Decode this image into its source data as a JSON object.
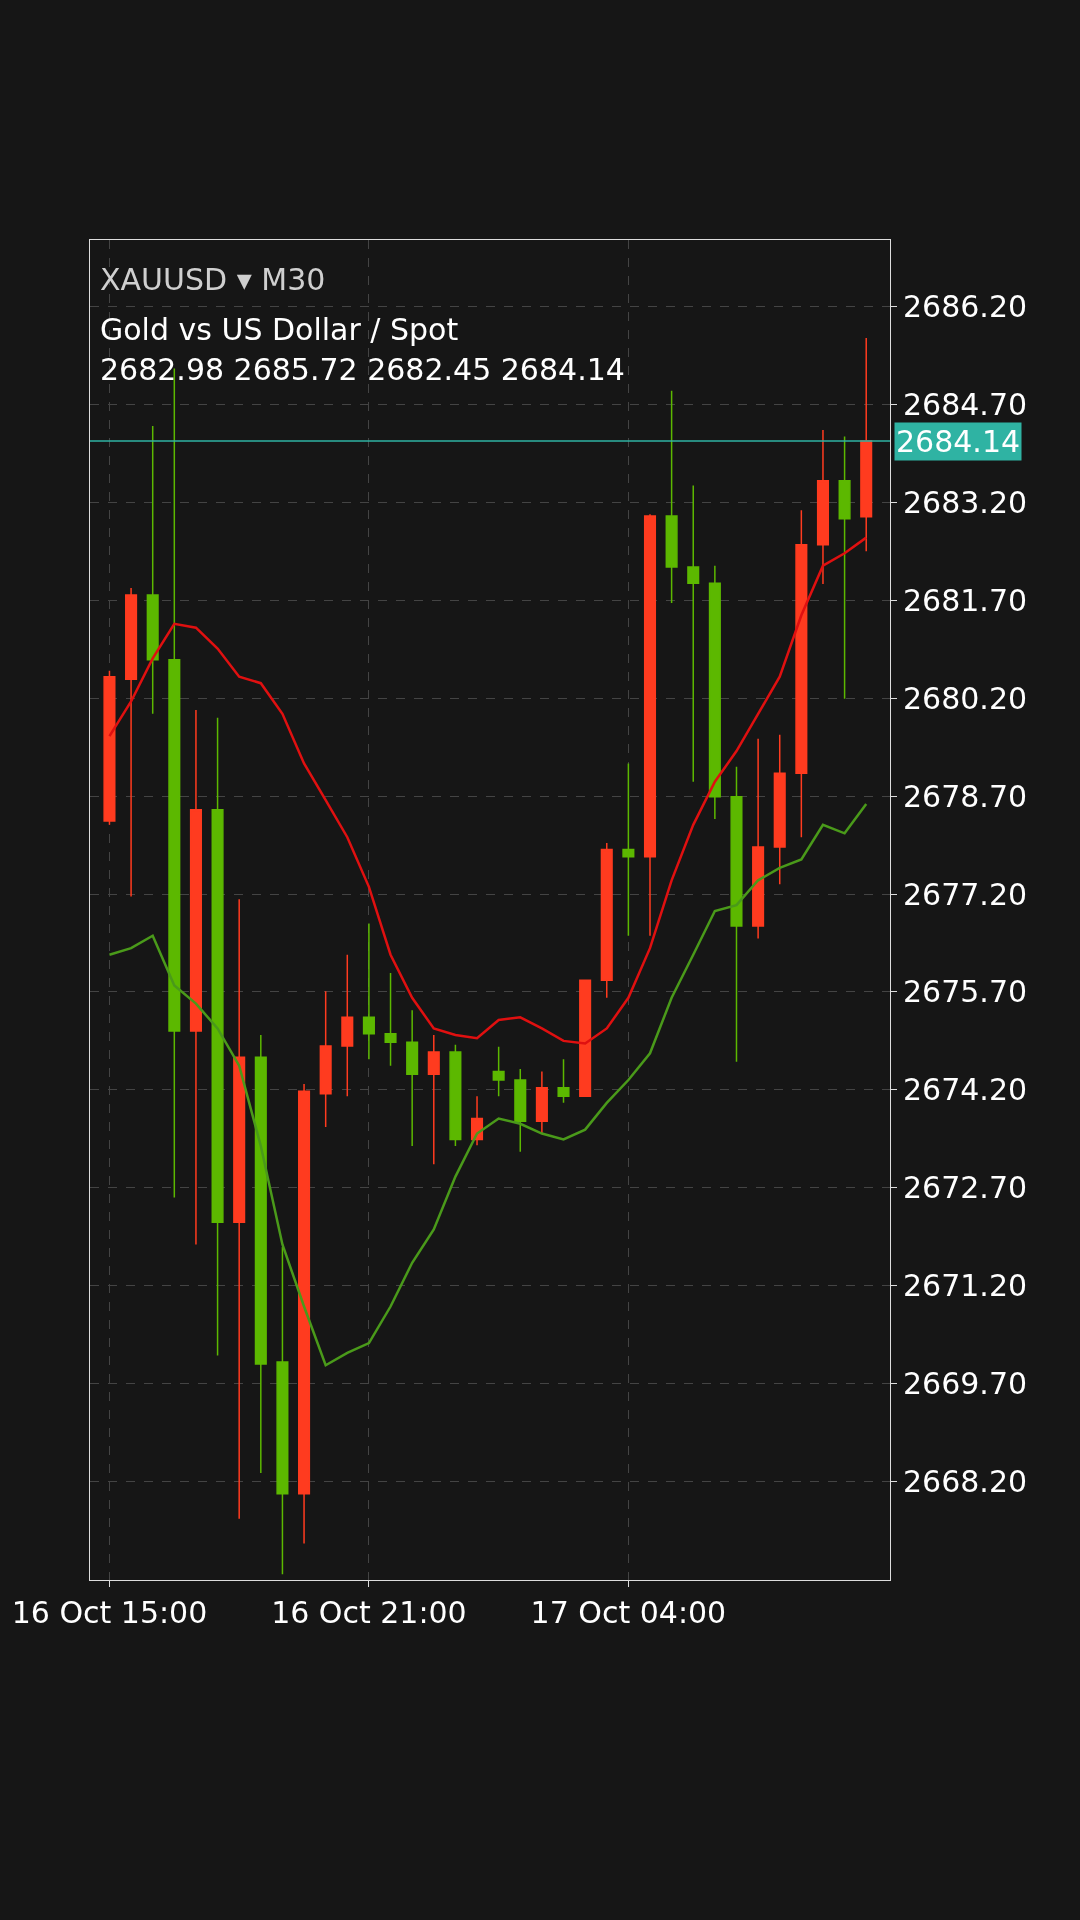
{
  "chart_data": {
    "type": "candlestick",
    "title": "XAUUSD ▾ M30",
    "subtitle": "Gold vs US Dollar / Spot",
    "annotations": [
      "2682.98 2685.72 2682.45 2684.14"
    ],
    "categories": [
      "16 Oct 15:00",
      null,
      null,
      null,
      null,
      null,
      null,
      null,
      null,
      null,
      null,
      null,
      "16 Oct 21:00",
      null,
      null,
      null,
      null,
      null,
      null,
      null,
      null,
      null,
      null,
      null,
      "17 Oct 04:00",
      null,
      null,
      null,
      null,
      null,
      null,
      null,
      null,
      null,
      null,
      null
    ],
    "series": [
      {
        "type": "line",
        "color": "#e01010",
        "values": [
          2679.62,
          2680.15,
          2680.81,
          2681.34,
          2681.28,
          2680.96,
          2680.53,
          2680.43,
          2679.96,
          2679.2,
          2678.64,
          2678.07,
          2677.31,
          2676.27,
          2675.61,
          2675.14,
          2675.04,
          2674.99,
          2675.27,
          2675.31,
          2675.14,
          2674.95,
          2674.91,
          2675.14,
          2675.61,
          2676.37,
          2677.41,
          2678.26,
          2678.92,
          2679.39,
          2679.96,
          2680.53,
          2681.47,
          2682.23,
          2682.42,
          2682.66
        ]
      },
      {
        "type": "line",
        "color": "#4a9a1a",
        "values": [
          2676.27,
          2676.37,
          2676.56,
          2675.8,
          2675.52,
          2675.14,
          2674.57,
          2673.34,
          2671.83,
          2670.88,
          2669.98,
          2670.17,
          2670.32,
          2670.88,
          2671.55,
          2672.06,
          2672.87,
          2673.53,
          2673.76,
          2673.68,
          2673.53,
          2673.44,
          2673.59,
          2674.0,
          2674.35,
          2674.76,
          2675.61,
          2676.27,
          2676.94,
          2677.03,
          2677.41,
          2677.6,
          2677.73,
          2678.26,
          2678.13,
          2678.58
        ]
      },
      {
        "type": "candlestick",
        "colors": [
          "#ff3b1f",
          "#ff3b1f",
          "#5cb800",
          "#5cb800",
          "#ff3b1f",
          "#5cb800",
          "#ff3b1f",
          "#5cb800",
          "#5cb800",
          "#ff3b1f",
          "#ff3b1f",
          "#ff3b1f",
          "#5cb800",
          "#5cb800",
          "#5cb800",
          "#ff3b1f",
          "#5cb800",
          "#ff3b1f",
          "#5cb800",
          "#5cb800",
          "#ff3b1f",
          "#5cb800",
          "#ff3b1f",
          "#ff3b1f",
          "#5cb800",
          "#ff3b1f",
          "#5cb800",
          "#5cb800",
          "#5cb800",
          "#5cb800",
          "#ff3b1f",
          "#ff3b1f",
          "#ff3b1f",
          "#ff3b1f",
          "#5cb800",
          "#ff3b1f"
        ],
        "ohlc": [
          [
            2678.32,
            2680.62,
            2678.26,
            2680.53
          ],
          [
            2680.49,
            2681.89,
            2677.16,
            2681.78
          ],
          [
            2681.78,
            2684.37,
            2679.96,
            2680.79
          ],
          [
            2680.79,
            2685.25,
            2672.55,
            2675.1
          ],
          [
            2675.1,
            2680.02,
            2671.83,
            2678.49
          ],
          [
            2678.49,
            2679.9,
            2670.13,
            2672.17
          ],
          [
            2672.17,
            2677.12,
            2667.63,
            2674.7
          ],
          [
            2674.7,
            2675.04,
            2668.33,
            2670.0
          ],
          [
            2670.03,
            2671.79,
            2666.78,
            2668.01
          ],
          [
            2668.01,
            2674.29,
            2667.25,
            2674.18
          ],
          [
            2674.14,
            2675.71,
            2673.63,
            2674.87
          ],
          [
            2674.87,
            2676.27,
            2674.1,
            2675.31
          ],
          [
            2675.31,
            2676.75,
            2674.67,
            2675.06
          ],
          [
            2675.06,
            2675.99,
            2674.57,
            2674.93
          ],
          [
            2674.93,
            2675.42,
            2673.34,
            2674.44
          ],
          [
            2674.44,
            2675.04,
            2673.06,
            2674.78
          ],
          [
            2674.78,
            2674.89,
            2673.34,
            2673.44
          ],
          [
            2673.44,
            2674.1,
            2673.35,
            2673.76
          ],
          [
            2674.48,
            2674.86,
            2674.1,
            2674.35
          ],
          [
            2674.35,
            2674.52,
            2673.25,
            2673.72
          ],
          [
            2673.72,
            2674.48,
            2673.53,
            2674.23
          ],
          [
            2674.23,
            2674.67,
            2674.0,
            2674.1
          ],
          [
            2674.1,
            2675.88,
            2674.1,
            2675.88
          ],
          [
            2675.88,
            2677.98,
            2675.61,
            2677.88
          ],
          [
            2677.88,
            2679.2,
            2676.56,
            2677.77
          ],
          [
            2677.77,
            2683.02,
            2676.56,
            2682.99
          ],
          [
            2682.99,
            2684.91,
            2681.66,
            2682.21
          ],
          [
            2682.21,
            2683.46,
            2678.92,
            2681.96
          ],
          [
            2681.96,
            2682.23,
            2678.35,
            2678.69
          ],
          [
            2678.69,
            2679.15,
            2674.63,
            2676.71
          ],
          [
            2676.71,
            2679.58,
            2676.52,
            2677.92
          ],
          [
            2677.92,
            2679.64,
            2677.35,
            2679.05
          ],
          [
            2679.05,
            2683.08,
            2678.07,
            2682.55
          ],
          [
            2682.55,
            2684.31,
            2681.95,
            2683.53
          ],
          [
            2683.53,
            2684.21,
            2680.19,
            2682.95
          ],
          [
            2682.98,
            2685.72,
            2682.45,
            2684.14
          ]
        ]
      }
    ],
    "ylim": [
      2666.69,
      2687.22
    ],
    "yticks": [
      {
        "value": 2686.2,
        "label": "2686.20"
      },
      {
        "value": 2684.7,
        "label": "2684.70"
      },
      {
        "value": 2683.2,
        "label": "2683.20"
      },
      {
        "value": 2681.7,
        "label": "2681.70"
      },
      {
        "value": 2680.2,
        "label": "2680.20"
      },
      {
        "value": 2678.7,
        "label": "2678.70"
      },
      {
        "value": 2677.2,
        "label": "2677.20"
      },
      {
        "value": 2675.7,
        "label": "2675.70"
      },
      {
        "value": 2674.2,
        "label": "2674.20"
      },
      {
        "value": 2672.7,
        "label": "2672.70"
      },
      {
        "value": 2671.2,
        "label": "2671.20"
      },
      {
        "value": 2669.7,
        "label": "2669.70"
      },
      {
        "value": 2668.2,
        "label": "2668.20"
      }
    ],
    "ref_lines": [
      {
        "axis": "y",
        "value": 2684.14,
        "label": "2684.14",
        "color": "#2fb3a3"
      }
    ],
    "grid": true
  }
}
